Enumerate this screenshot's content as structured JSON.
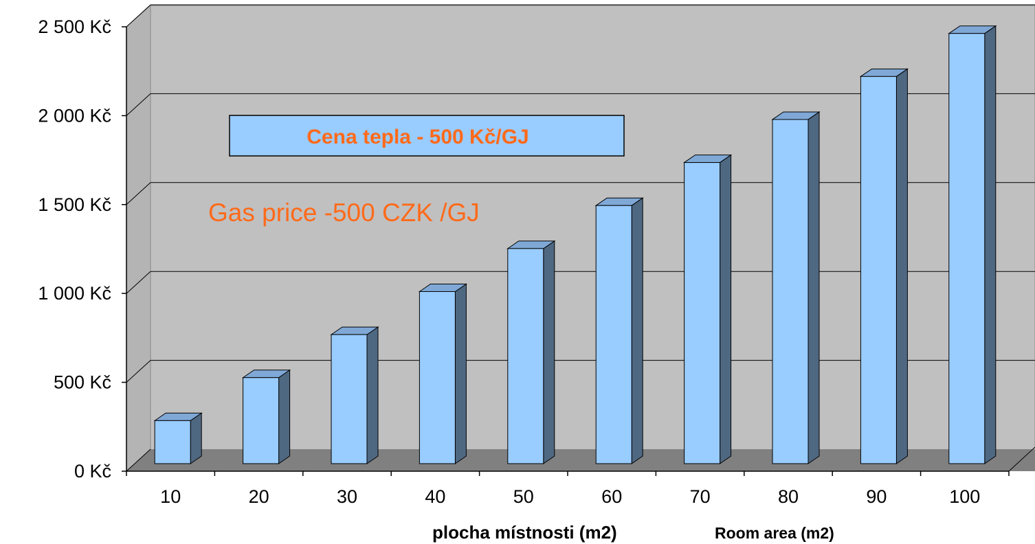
{
  "chart_data": {
    "type": "bar",
    "style": "3d-column",
    "categories": [
      "10",
      "20",
      "30",
      "40",
      "50",
      "60",
      "70",
      "80",
      "90",
      "100"
    ],
    "values": [
      242,
      484,
      726,
      968,
      1210,
      1452,
      1694,
      1936,
      2178,
      2420
    ],
    "ylim": [
      0,
      2500
    ],
    "y_ticks": [
      0,
      500,
      1000,
      1500,
      2000,
      2500
    ],
    "y_tick_labels": [
      "0 Kč",
      "500 Kč",
      "1 000 Kč",
      "1 500 Kč",
      "2 000 Kč",
      "2 500 Kč"
    ],
    "xlabel": "plocha místnosti (m2)",
    "xlabel_secondary": "Room area (m2)",
    "ylabel": "",
    "grid": true,
    "annotations": [
      "Cena tepla - 500 Kč/GJ",
      "Gas price -500 CZK /GJ"
    ]
  },
  "colors": {
    "bar_front": "#99CCFF",
    "bar_side": "#4F6882",
    "bar_top": "#7FA8D6",
    "back_wall": "#C0C0C0",
    "floor": "#808080",
    "annotation_text": "#FF6A1A"
  }
}
